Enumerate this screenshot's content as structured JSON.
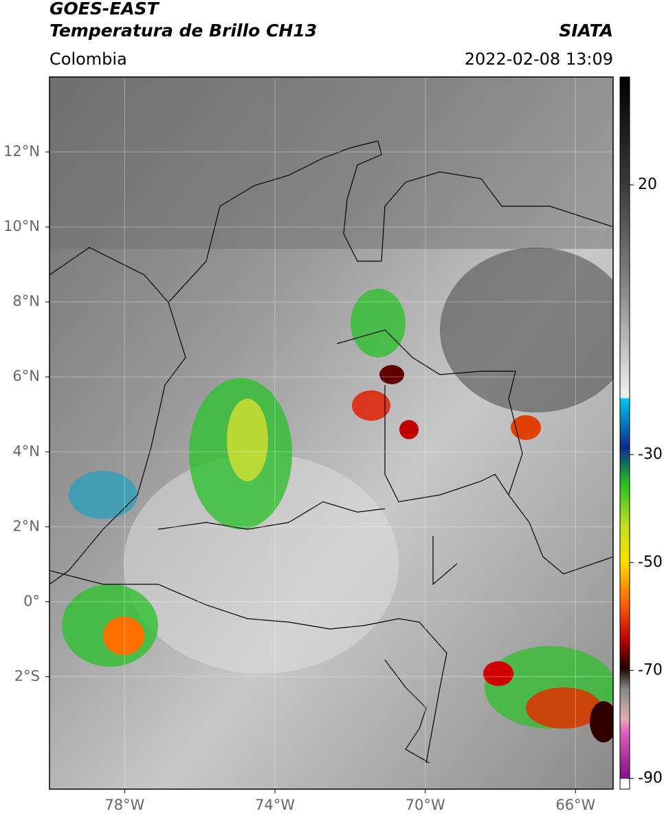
{
  "header": {
    "title": "GOES-EAST",
    "subtitle": "Temperatura de Brillo CH13",
    "source": "SIATA",
    "region": "Colombia",
    "timestamp": "2022-02-08 13:09"
  },
  "map": {
    "xlim": [
      -80,
      -65
    ],
    "ylim": [
      -5,
      14
    ],
    "xticks": [
      {
        "value": -78,
        "label": "78°W"
      },
      {
        "value": -74,
        "label": "74°W"
      },
      {
        "value": -70,
        "label": "70°W"
      },
      {
        "value": -66,
        "label": "66°W"
      }
    ],
    "yticks": [
      {
        "value": 12,
        "label": "12°N"
      },
      {
        "value": 10,
        "label": "10°N"
      },
      {
        "value": 8,
        "label": "8°N"
      },
      {
        "value": 6,
        "label": "6°N"
      },
      {
        "value": 4,
        "label": "4°N"
      },
      {
        "value": 2,
        "label": "2°N"
      },
      {
        "value": 0,
        "label": "0°"
      },
      {
        "value": -2,
        "label": "2°S"
      }
    ],
    "grid": true
  },
  "colorbar": {
    "lim": [
      -92,
      40
    ],
    "ticks": [
      20,
      -30,
      -50,
      -70,
      -90
    ]
  }
}
